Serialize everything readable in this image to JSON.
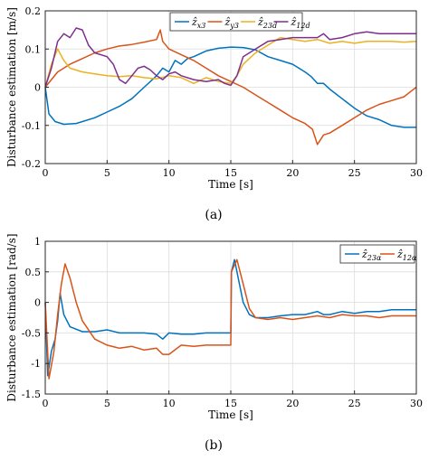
{
  "figure": {
    "label_a": "(a)",
    "label_b": "(b)"
  },
  "chart_data": [
    {
      "type": "line",
      "title": "",
      "xlabel": "Time [s]",
      "ylabel": "Disturbance estimation [m/s]",
      "xlim": [
        0,
        30
      ],
      "ylim": [
        -0.2,
        0.2
      ],
      "xticks": [
        "0",
        "5",
        "10",
        "15",
        "20",
        "25",
        "30"
      ],
      "yticks": [
        "0.2",
        "0.1",
        "0",
        "-0.1",
        "-0.2"
      ],
      "grid": true,
      "legend_position": "top-right",
      "series": [
        {
          "name": "ẑx3",
          "legend_main": "ẑ",
          "legend_sub": "x3",
          "color": "#0072BD",
          "points": [
            [
              0,
              0
            ],
            [
              0.3,
              -0.07
            ],
            [
              0.8,
              -0.09
            ],
            [
              1.5,
              -0.097
            ],
            [
              2.5,
              -0.095
            ],
            [
              4,
              -0.08
            ],
            [
              5,
              -0.065
            ],
            [
              6,
              -0.05
            ],
            [
              7,
              -0.03
            ],
            [
              8,
              0
            ],
            [
              9,
              0.03
            ],
            [
              9.5,
              0.05
            ],
            [
              10,
              0.04
            ],
            [
              10.5,
              0.07
            ],
            [
              11,
              0.06
            ],
            [
              11.5,
              0.075
            ],
            [
              12,
              0.08
            ],
            [
              13,
              0.095
            ],
            [
              14,
              0.102
            ],
            [
              15,
              0.105
            ],
            [
              16,
              0.104
            ],
            [
              17,
              0.098
            ],
            [
              18,
              0.08
            ],
            [
              19,
              0.07
            ],
            [
              19.5,
              0.065
            ],
            [
              20,
              0.06
            ],
            [
              20.5,
              0.05
            ],
            [
              21,
              0.04
            ],
            [
              21.5,
              0.028
            ],
            [
              22,
              0.01
            ],
            [
              22.5,
              0.01
            ],
            [
              23,
              -0.005
            ],
            [
              24,
              -0.03
            ],
            [
              25,
              -0.055
            ],
            [
              26,
              -0.075
            ],
            [
              27,
              -0.085
            ],
            [
              28,
              -0.1
            ],
            [
              29,
              -0.105
            ],
            [
              30,
              -0.105
            ]
          ]
        },
        {
          "name": "ẑy3",
          "legend_main": "ẑ",
          "legend_sub": "y3",
          "color": "#D95319",
          "points": [
            [
              0,
              0
            ],
            [
              0.5,
              0.02
            ],
            [
              1,
              0.04
            ],
            [
              1.5,
              0.05
            ],
            [
              2,
              0.06
            ],
            [
              3,
              0.075
            ],
            [
              4,
              0.09
            ],
            [
              5,
              0.1
            ],
            [
              6,
              0.108
            ],
            [
              7,
              0.112
            ],
            [
              8,
              0.118
            ],
            [
              9,
              0.125
            ],
            [
              9.3,
              0.15
            ],
            [
              9.5,
              0.12
            ],
            [
              10,
              0.1
            ],
            [
              11,
              0.085
            ],
            [
              12,
              0.07
            ],
            [
              13,
              0.05
            ],
            [
              14,
              0.03
            ],
            [
              15,
              0.015
            ],
            [
              16,
              0
            ],
            [
              17,
              -0.02
            ],
            [
              18,
              -0.04
            ],
            [
              19,
              -0.06
            ],
            [
              20,
              -0.08
            ],
            [
              21,
              -0.095
            ],
            [
              21.6,
              -0.11
            ],
            [
              22,
              -0.15
            ],
            [
              22.5,
              -0.125
            ],
            [
              23,
              -0.12
            ],
            [
              24,
              -0.1
            ],
            [
              25,
              -0.08
            ],
            [
              26,
              -0.06
            ],
            [
              27,
              -0.045
            ],
            [
              28,
              -0.035
            ],
            [
              29,
              -0.025
            ],
            [
              29.6,
              -0.01
            ],
            [
              30,
              0
            ]
          ]
        },
        {
          "name": "ẑ23d",
          "legend_main": "ẑ",
          "legend_sub": "23d",
          "color": "#EDB120",
          "points": [
            [
              0,
              0
            ],
            [
              0.5,
              0.06
            ],
            [
              1,
              0.1
            ],
            [
              1.5,
              0.07
            ],
            [
              2,
              0.05
            ],
            [
              3,
              0.04
            ],
            [
              4,
              0.035
            ],
            [
              5,
              0.03
            ],
            [
              6,
              0.028
            ],
            [
              7,
              0.03
            ],
            [
              8,
              0.025
            ],
            [
              9,
              0.022
            ],
            [
              10,
              0.03
            ],
            [
              11,
              0.025
            ],
            [
              12,
              0.01
            ],
            [
              13,
              0.025
            ],
            [
              14,
              0.015
            ],
            [
              15,
              0.01
            ],
            [
              15.5,
              0.03
            ],
            [
              16,
              0.06
            ],
            [
              17,
              0.09
            ],
            [
              18,
              0.11
            ],
            [
              19,
              0.13
            ],
            [
              20,
              0.125
            ],
            [
              21,
              0.12
            ],
            [
              22,
              0.125
            ],
            [
              23,
              0.115
            ],
            [
              24,
              0.12
            ],
            [
              25,
              0.115
            ],
            [
              26,
              0.12
            ],
            [
              27,
              0.12
            ],
            [
              28,
              0.12
            ],
            [
              29,
              0.118
            ],
            [
              30,
              0.12
            ]
          ]
        },
        {
          "name": "ẑ12d",
          "legend_main": "ẑ",
          "legend_sub": "12d",
          "color": "#7E2F8E",
          "points": [
            [
              0,
              0
            ],
            [
              0.5,
              0.05
            ],
            [
              1,
              0.12
            ],
            [
              1.5,
              0.14
            ],
            [
              2,
              0.13
            ],
            [
              2.5,
              0.155
            ],
            [
              3,
              0.15
            ],
            [
              3.5,
              0.11
            ],
            [
              4,
              0.09
            ],
            [
              5,
              0.08
            ],
            [
              5.5,
              0.06
            ],
            [
              6,
              0.02
            ],
            [
              6.5,
              0.01
            ],
            [
              7,
              0.03
            ],
            [
              7.5,
              0.05
            ],
            [
              8,
              0.055
            ],
            [
              8.5,
              0.045
            ],
            [
              9,
              0.03
            ],
            [
              9.5,
              0.02
            ],
            [
              10,
              0.035
            ],
            [
              10.5,
              0.04
            ],
            [
              11,
              0.03
            ],
            [
              12,
              0.02
            ],
            [
              13,
              0.015
            ],
            [
              14,
              0.02
            ],
            [
              14.5,
              0.01
            ],
            [
              15,
              0.005
            ],
            [
              15.5,
              0.03
            ],
            [
              16,
              0.08
            ],
            [
              17,
              0.1
            ],
            [
              18,
              0.12
            ],
            [
              19,
              0.125
            ],
            [
              20,
              0.13
            ],
            [
              21,
              0.13
            ],
            [
              22,
              0.13
            ],
            [
              22.5,
              0.14
            ],
            [
              23,
              0.125
            ],
            [
              24,
              0.13
            ],
            [
              25,
              0.14
            ],
            [
              26,
              0.145
            ],
            [
              27,
              0.14
            ],
            [
              28,
              0.14
            ],
            [
              29,
              0.14
            ],
            [
              30,
              0.14
            ]
          ]
        }
      ]
    },
    {
      "type": "line",
      "title": "",
      "xlabel": "Time [s]",
      "ylabel": "Disturbance estimation [rad/s]",
      "xlim": [
        0,
        30
      ],
      "ylim": [
        -1.5,
        1
      ],
      "xticks": [
        "0",
        "5",
        "10",
        "15",
        "20",
        "25",
        "30"
      ],
      "yticks": [
        "1",
        "0.5",
        "0",
        "-0.5",
        "-1",
        "-1.5"
      ],
      "grid": true,
      "legend_position": "top-right",
      "series": [
        {
          "name": "ẑ23α",
          "legend_main": "ẑ",
          "legend_sub": "23α",
          "color": "#0072BD",
          "points": [
            [
              0,
              0
            ],
            [
              0.2,
              -1.2
            ],
            [
              0.5,
              -0.8
            ],
            [
              0.8,
              -0.6
            ],
            [
              1,
              -0.3
            ],
            [
              1.2,
              0.15
            ],
            [
              1.5,
              -0.2
            ],
            [
              2,
              -0.4
            ],
            [
              3,
              -0.48
            ],
            [
              4,
              -0.48
            ],
            [
              5,
              -0.45
            ],
            [
              6,
              -0.5
            ],
            [
              7,
              -0.5
            ],
            [
              8,
              -0.5
            ],
            [
              9,
              -0.52
            ],
            [
              9.5,
              -0.6
            ],
            [
              10,
              -0.5
            ],
            [
              11,
              -0.52
            ],
            [
              12,
              -0.52
            ],
            [
              13,
              -0.5
            ],
            [
              14,
              -0.5
            ],
            [
              15,
              -0.5
            ],
            [
              15.05,
              0.5
            ],
            [
              15.3,
              0.7
            ],
            [
              15.6,
              0.4
            ],
            [
              16,
              0
            ],
            [
              16.5,
              -0.2
            ],
            [
              17,
              -0.25
            ],
            [
              18,
              -0.25
            ],
            [
              19,
              -0.22
            ],
            [
              20,
              -0.2
            ],
            [
              21,
              -0.2
            ],
            [
              22,
              -0.15
            ],
            [
              22.5,
              -0.2
            ],
            [
              23,
              -0.2
            ],
            [
              24,
              -0.15
            ],
            [
              25,
              -0.18
            ],
            [
              26,
              -0.15
            ],
            [
              27,
              -0.15
            ],
            [
              28,
              -0.12
            ],
            [
              29,
              -0.12
            ],
            [
              30,
              -0.12
            ]
          ]
        },
        {
          "name": "ẑ12α",
          "legend_main": "ẑ",
          "legend_sub": "12α",
          "color": "#D95319",
          "points": [
            [
              0,
              0
            ],
            [
              0.3,
              -1.25
            ],
            [
              0.7,
              -0.8
            ],
            [
              1,
              -0.2
            ],
            [
              1.3,
              0.3
            ],
            [
              1.6,
              0.63
            ],
            [
              2,
              0.4
            ],
            [
              2.5,
              0
            ],
            [
              3,
              -0.3
            ],
            [
              4,
              -0.6
            ],
            [
              5,
              -0.7
            ],
            [
              6,
              -0.75
            ],
            [
              7,
              -0.72
            ],
            [
              8,
              -0.78
            ],
            [
              9,
              -0.75
            ],
            [
              9.5,
              -0.85
            ],
            [
              10,
              -0.85
            ],
            [
              11,
              -0.7
            ],
            [
              12,
              -0.72
            ],
            [
              13,
              -0.7
            ],
            [
              14,
              -0.7
            ],
            [
              15,
              -0.7
            ],
            [
              15.05,
              0.5
            ],
            [
              15.5,
              0.7
            ],
            [
              16,
              0.3
            ],
            [
              16.5,
              -0.1
            ],
            [
              17,
              -0.25
            ],
            [
              18,
              -0.28
            ],
            [
              19,
              -0.25
            ],
            [
              20,
              -0.28
            ],
            [
              21,
              -0.25
            ],
            [
              22,
              -0.22
            ],
            [
              23,
              -0.25
            ],
            [
              24,
              -0.2
            ],
            [
              25,
              -0.22
            ],
            [
              26,
              -0.22
            ],
            [
              27,
              -0.25
            ],
            [
              28,
              -0.22
            ],
            [
              29,
              -0.22
            ],
            [
              30,
              -0.22
            ]
          ]
        }
      ]
    }
  ]
}
